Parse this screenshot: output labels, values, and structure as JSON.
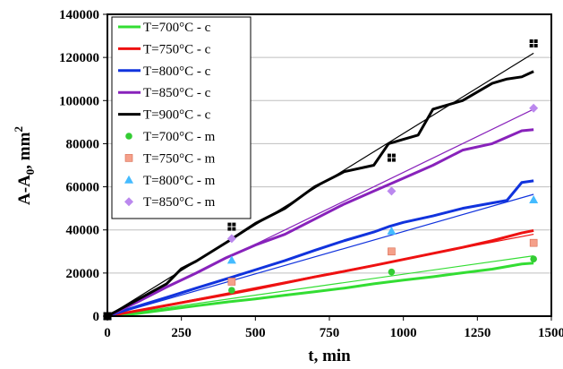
{
  "chart_data": {
    "type": "line",
    "xlabel": "t, min",
    "ylabel_main": "A-A",
    "ylabel_sub": "0",
    "ylabel_tail": ", mm",
    "ylabel_sup": "2",
    "xlim": [
      0,
      1500
    ],
    "ylim": [
      0,
      140000
    ],
    "x_ticks": [
      "0",
      "250",
      "500",
      "750",
      "1000",
      "1250",
      "1500"
    ],
    "y_ticks": [
      "0",
      "20000",
      "40000",
      "60000",
      "80000",
      "100000",
      "120000",
      "140000"
    ],
    "grid": "horizontal",
    "legend_position": "top-left",
    "series": [
      {
        "name": "T=700°C - c",
        "kind": "line",
        "color": "#33dd33",
        "points": [
          [
            0,
            0
          ],
          [
            100,
            1200
          ],
          [
            200,
            3000
          ],
          [
            300,
            4800
          ],
          [
            400,
            6500
          ],
          [
            500,
            8000
          ],
          [
            600,
            9700
          ],
          [
            700,
            11300
          ],
          [
            800,
            13000
          ],
          [
            900,
            15000
          ],
          [
            1000,
            16700
          ],
          [
            1100,
            18300
          ],
          [
            1200,
            20100
          ],
          [
            1300,
            21800
          ],
          [
            1400,
            24200
          ],
          [
            1440,
            24600
          ]
        ]
      },
      {
        "name": "T=750°C - c",
        "kind": "line",
        "color": "#ee1111",
        "points": [
          [
            0,
            0
          ],
          [
            100,
            2500
          ],
          [
            200,
            5000
          ],
          [
            300,
            7500
          ],
          [
            400,
            10000
          ],
          [
            500,
            12600
          ],
          [
            600,
            15400
          ],
          [
            700,
            18200
          ],
          [
            800,
            20800
          ],
          [
            900,
            23500
          ],
          [
            1000,
            26300
          ],
          [
            1100,
            29100
          ],
          [
            1200,
            31900
          ],
          [
            1300,
            35000
          ],
          [
            1400,
            38600
          ],
          [
            1440,
            39700
          ]
        ]
      },
      {
        "name": "T=800°C - c",
        "kind": "line",
        "color": "#1133dd",
        "points": [
          [
            0,
            0
          ],
          [
            100,
            4500
          ],
          [
            200,
            8700
          ],
          [
            300,
            13000
          ],
          [
            400,
            17200
          ],
          [
            500,
            21500
          ],
          [
            600,
            25800
          ],
          [
            700,
            30500
          ],
          [
            800,
            35000
          ],
          [
            900,
            39000
          ],
          [
            950,
            41500
          ],
          [
            1000,
            43500
          ],
          [
            1100,
            46500
          ],
          [
            1200,
            50000
          ],
          [
            1300,
            52500
          ],
          [
            1350,
            53700
          ],
          [
            1400,
            62000
          ],
          [
            1440,
            62800
          ]
        ]
      },
      {
        "name": "T=850°C - c",
        "kind": "line",
        "color": "#8822bb",
        "points": [
          [
            0,
            0
          ],
          [
            100,
            6500
          ],
          [
            200,
            13500
          ],
          [
            300,
            20000
          ],
          [
            400,
            27000
          ],
          [
            500,
            33000
          ],
          [
            600,
            38000
          ],
          [
            700,
            45000
          ],
          [
            800,
            52000
          ],
          [
            900,
            58000
          ],
          [
            1000,
            64000
          ],
          [
            1100,
            70000
          ],
          [
            1200,
            77000
          ],
          [
            1300,
            80000
          ],
          [
            1400,
            86000
          ],
          [
            1440,
            86500
          ]
        ]
      },
      {
        "name": "T=900°C - c",
        "kind": "line",
        "color": "#000000",
        "points": [
          [
            0,
            0
          ],
          [
            100,
            7500
          ],
          [
            200,
            15000
          ],
          [
            250,
            22000
          ],
          [
            300,
            25500
          ],
          [
            400,
            34000
          ],
          [
            500,
            43000
          ],
          [
            600,
            50000
          ],
          [
            700,
            60000
          ],
          [
            800,
            67000
          ],
          [
            900,
            70000
          ],
          [
            950,
            80000
          ],
          [
            1000,
            82000
          ],
          [
            1050,
            84000
          ],
          [
            1100,
            96000
          ],
          [
            1200,
            100000
          ],
          [
            1300,
            108000
          ],
          [
            1350,
            110000
          ],
          [
            1400,
            111000
          ],
          [
            1440,
            113500
          ]
        ]
      },
      {
        "name": "T=700°C - m",
        "kind": "marker",
        "marker": "circle",
        "color": "#33cc33",
        "points": [
          [
            0,
            0
          ],
          [
            420,
            12000
          ],
          [
            960,
            20500
          ],
          [
            1440,
            26500
          ]
        ]
      },
      {
        "name": "T=750°C - m",
        "kind": "marker",
        "marker": "square",
        "color": "#f5a08a",
        "points": [
          [
            0,
            0
          ],
          [
            420,
            16000
          ],
          [
            960,
            30000
          ],
          [
            1440,
            34000
          ]
        ]
      },
      {
        "name": "T=800°C - m",
        "kind": "marker",
        "marker": "triangle",
        "color": "#44bbff",
        "points": [
          [
            0,
            0
          ],
          [
            420,
            26000
          ],
          [
            960,
            39500
          ],
          [
            1440,
            54000
          ]
        ]
      },
      {
        "name": "T=850°C - m",
        "kind": "marker",
        "marker": "diamond",
        "color": "#bb88ee",
        "points": [
          [
            0,
            0
          ],
          [
            420,
            36000
          ],
          [
            960,
            58000
          ],
          [
            1440,
            96500
          ]
        ]
      },
      {
        "kind": "marker",
        "marker": "bigsquare",
        "color": "#000000",
        "points": [
          [
            0,
            0
          ],
          [
            420,
            41500
          ],
          [
            960,
            73500
          ],
          [
            1440,
            126500
          ]
        ]
      }
    ],
    "trendlines": [
      {
        "color": "#33dd33",
        "points": [
          [
            0,
            0
          ],
          [
            1440,
            28000
          ]
        ]
      },
      {
        "color": "#ee1111",
        "points": [
          [
            0,
            0
          ],
          [
            1440,
            38000
          ]
        ]
      },
      {
        "color": "#1133dd",
        "points": [
          [
            0,
            0
          ],
          [
            1440,
            56500
          ]
        ]
      },
      {
        "color": "#8822bb",
        "points": [
          [
            0,
            0
          ],
          [
            1440,
            96000
          ]
        ]
      },
      {
        "color": "#000000",
        "points": [
          [
            0,
            0
          ],
          [
            1440,
            122000
          ]
        ]
      }
    ]
  }
}
